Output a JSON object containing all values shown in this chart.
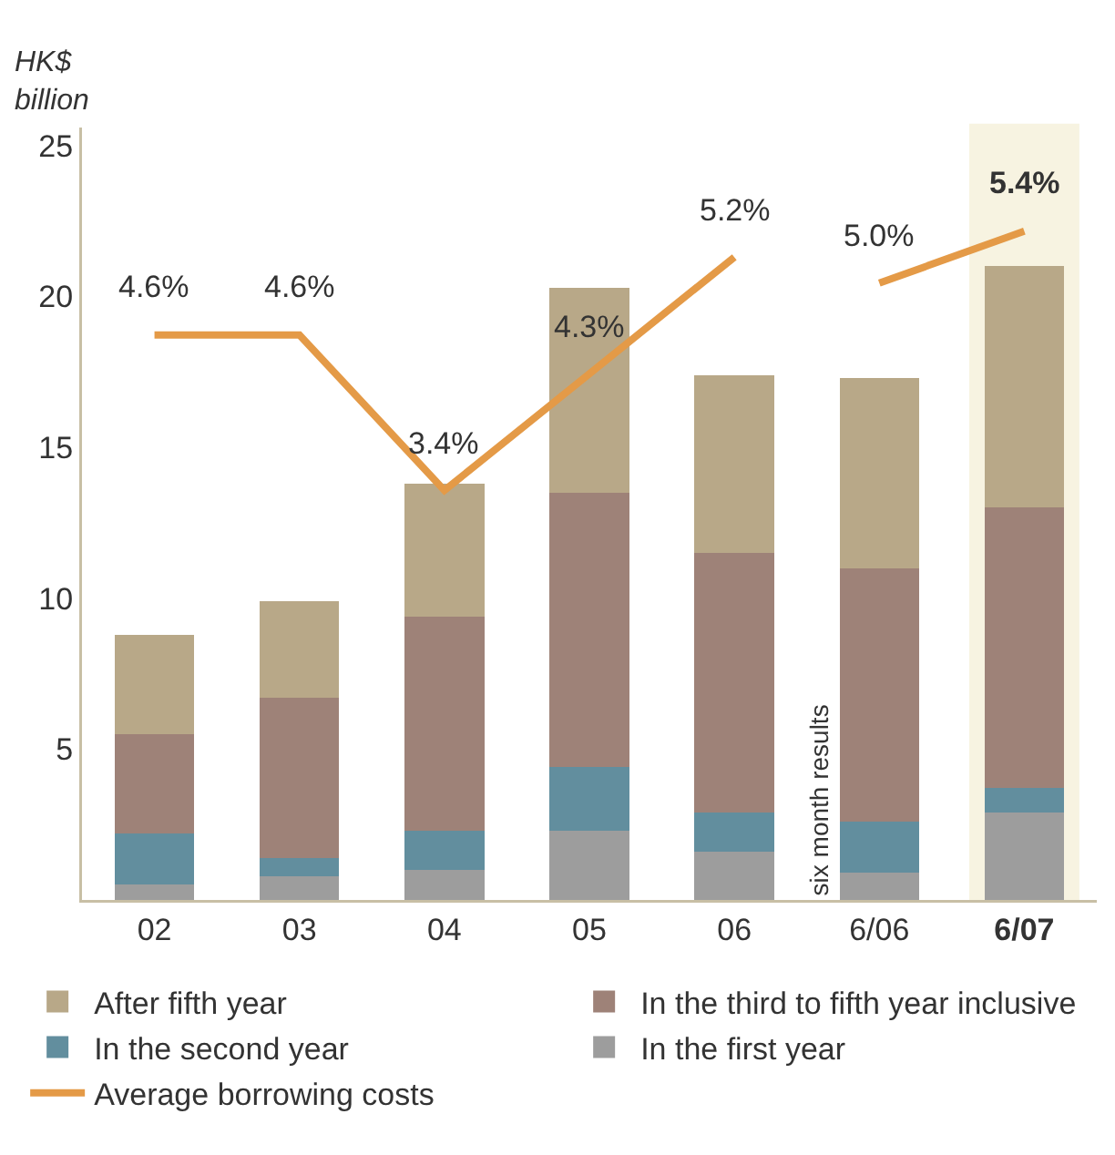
{
  "chart_data": {
    "type": "bar",
    "stacked": true,
    "ylabel": "HK$\nbillion",
    "categories": [
      "02",
      "03",
      "04",
      "05",
      "06",
      "6/06",
      "6/07"
    ],
    "series": [
      {
        "name": "In the first year",
        "color": "#9d9d9d",
        "values": [
          0.5,
          0.8,
          1.0,
          2.3,
          1.6,
          0.9,
          2.9
        ]
      },
      {
        "name": "In the second year",
        "color": "#628e9e",
        "values": [
          1.7,
          0.6,
          1.3,
          2.1,
          1.3,
          1.7,
          0.8
        ]
      },
      {
        "name": "In the third to fifth year inclusive",
        "color": "#9e8278",
        "values": [
          3.3,
          5.3,
          7.1,
          9.1,
          8.6,
          8.4,
          9.3
        ]
      },
      {
        "name": "After fifth year",
        "color": "#b8a888",
        "values": [
          3.3,
          3.2,
          4.4,
          6.8,
          5.9,
          6.3,
          8.0
        ]
      },
      {
        "name": "Average borrowing costs",
        "type": "line",
        "axis": "y2",
        "color": "#e49a47",
        "values": [
          4.6,
          4.6,
          3.4,
          4.3,
          5.2,
          null,
          null
        ],
        "value_labels": [
          "4.6%",
          "4.6%",
          "3.4%",
          "4.3%",
          "5.2%",
          null,
          null
        ]
      },
      {
        "type": "line",
        "axis": "y2",
        "color": "#e49a47",
        "values": [
          null,
          null,
          null,
          null,
          null,
          5.0,
          5.4
        ],
        "value_labels": [
          null,
          null,
          null,
          null,
          null,
          "5.0%",
          "5.4%"
        ]
      }
    ],
    "ylim": [
      0,
      25.6
    ],
    "yticks": [
      5,
      10,
      15,
      20,
      25
    ],
    "y2lim": [
      0.24,
      6.2
    ],
    "bands": [
      {
        "axis": "x",
        "from": "6/07",
        "to": "6/07",
        "color": "#f7f3e1"
      }
    ],
    "annotations": [
      {
        "text": "six month results",
        "x": "6/06",
        "y": 0
      }
    ],
    "grid": false,
    "legend": "bottom",
    "line_style": "solid",
    "marker": "none"
  }
}
